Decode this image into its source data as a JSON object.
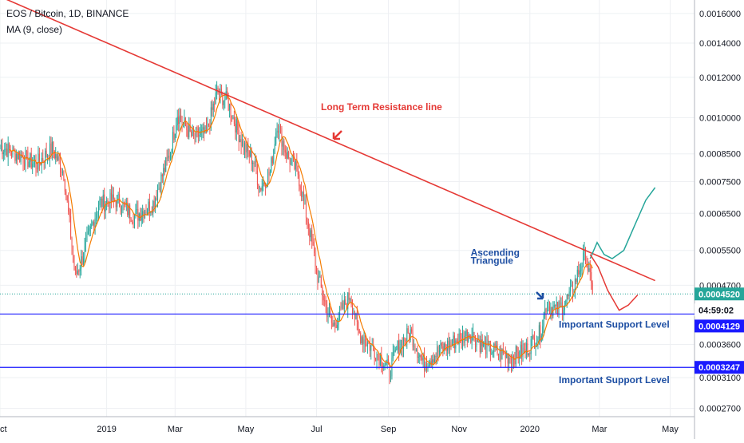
{
  "legend": {
    "title": "EOS / Bitcoin, 1D, BINANCE",
    "ma": "MA (9, close)"
  },
  "colors": {
    "up": "#26a69a",
    "down": "#ef5350",
    "ma": "#f57c00",
    "resistance": "#e53935",
    "support": "#1a1aff",
    "bullish": "#26a69a",
    "bearish": "#e53935",
    "annotation_red": "#e53935",
    "annotation_blue": "#1e4fa3",
    "price_tag": "#26a69a",
    "level_tag": "#1a1aff"
  },
  "chart_data": {
    "type": "candlestick",
    "title": "EOS / Bitcoin, 1D, BINANCE",
    "y_scale": "log",
    "ylim": [
      0.00026,
      0.0017
    ],
    "y_ticks": [
      "0.0016000",
      "0.0014000",
      "0.0012000",
      "0.0010000",
      "0.0008500",
      "0.0007500",
      "0.0006500",
      "0.0005500",
      "0.0004700",
      "0.0003600",
      "0.0003100",
      "0.0002700"
    ],
    "x_ticks": [
      "Oct",
      "2019",
      "Mar",
      "May",
      "Jul",
      "Sep",
      "Nov",
      "2020",
      "Mar",
      "May"
    ],
    "x_tick_positions": [
      "2018-10-01",
      "2019-01-01",
      "2019-03-01",
      "2019-05-01",
      "2019-07-01",
      "2019-09-01",
      "2019-11-01",
      "2020-01-01",
      "2020-03-01",
      "2020-05-01"
    ],
    "xlim": [
      "2018-10-01",
      "2020-05-22"
    ],
    "series": [
      {
        "name": "EOS / Bitcoin",
        "points": [
          [
            "2018-10-01",
            0.00088
          ],
          [
            "2018-10-15",
            0.00085
          ],
          [
            "2018-11-01",
            0.00081
          ],
          [
            "2018-11-15",
            0.00087
          ],
          [
            "2018-11-25",
            0.00078
          ],
          [
            "2018-12-05",
            0.00049
          ],
          [
            "2018-12-12",
            0.00054
          ],
          [
            "2018-12-25",
            0.00068
          ],
          [
            "2019-01-10",
            0.00069
          ],
          [
            "2019-01-25",
            0.00064
          ],
          [
            "2019-02-10",
            0.00068
          ],
          [
            "2019-02-25",
            0.00086
          ],
          [
            "2019-03-03",
            0.00102
          ],
          [
            "2019-03-15",
            0.00092
          ],
          [
            "2019-03-28",
            0.00093
          ],
          [
            "2019-04-06",
            0.00112
          ],
          [
            "2019-04-15",
            0.00108
          ],
          [
            "2019-04-28",
            0.00089
          ],
          [
            "2019-05-08",
            0.00082
          ],
          [
            "2019-05-13",
            0.00073
          ],
          [
            "2019-05-22",
            0.00078
          ],
          [
            "2019-05-28",
            0.00098
          ],
          [
            "2019-06-05",
            0.00085
          ],
          [
            "2019-06-15",
            0.00078
          ],
          [
            "2019-06-25",
            0.0006
          ],
          [
            "2019-07-02",
            0.00049
          ],
          [
            "2019-07-10",
            0.00042
          ],
          [
            "2019-07-15",
            0.00039
          ],
          [
            "2019-07-23",
            0.00042
          ],
          [
            "2019-07-30",
            0.00045
          ],
          [
            "2019-08-06",
            0.00038
          ],
          [
            "2019-08-15",
            0.00036
          ],
          [
            "2019-08-25",
            0.00034
          ],
          [
            "2019-09-02",
            0.00032
          ],
          [
            "2019-09-10",
            0.00036
          ],
          [
            "2019-09-20",
            0.00038
          ],
          [
            "2019-10-01",
            0.00033
          ],
          [
            "2019-10-15",
            0.00035
          ],
          [
            "2019-11-01",
            0.00037
          ],
          [
            "2019-11-10",
            0.00038
          ],
          [
            "2019-11-20",
            0.00036
          ],
          [
            "2019-12-01",
            0.00035
          ],
          [
            "2019-12-15",
            0.00034
          ],
          [
            "2019-12-28",
            0.00035
          ],
          [
            "2020-01-10",
            0.00038
          ],
          [
            "2020-01-15",
            0.00043
          ],
          [
            "2020-01-25",
            0.00042
          ],
          [
            "2020-02-05",
            0.00045
          ],
          [
            "2020-02-12",
            0.0005
          ],
          [
            "2020-02-18",
            0.00054
          ],
          [
            "2020-02-22",
            0.00048
          ],
          [
            "2020-02-24",
            0.000452
          ]
        ]
      },
      {
        "name": "MA (9, close)",
        "type": "line"
      }
    ],
    "last_price": "0.0004520",
    "countdown": "04:59:02",
    "levels": [
      {
        "value": 0.0004129,
        "label": "0.0004129",
        "text": "Important Support Level"
      },
      {
        "value": 0.0003247,
        "label": "0.0003247",
        "text": "Important Support Level"
      }
    ],
    "resistance_line": {
      "from": [
        "2018-09-25",
        0.00175
      ],
      "to": [
        "2020-04-18",
        0.00048
      ],
      "label": "Long Term Resistance line"
    },
    "projection_bullish": [
      [
        "2020-02-22",
        0.00053
      ],
      [
        "2020-02-28",
        0.00057
      ],
      [
        "2020-03-05",
        0.00054
      ],
      [
        "2020-03-12",
        0.00053
      ],
      [
        "2020-03-22",
        0.00055
      ],
      [
        "2020-04-01",
        0.00062
      ],
      [
        "2020-04-10",
        0.00069
      ],
      [
        "2020-04-18",
        0.00073
      ]
    ],
    "projection_bearish": [
      [
        "2020-02-22",
        0.00054
      ],
      [
        "2020-02-29",
        0.00051
      ],
      [
        "2020-03-08",
        0.00046
      ],
      [
        "2020-03-18",
        0.00042
      ],
      [
        "2020-03-26",
        0.00043
      ],
      [
        "2020-04-03",
        0.00045
      ]
    ],
    "annotations": [
      {
        "text": "Ascending",
        "date": "2020-01-05",
        "value": 0.000545
      },
      {
        "text": "Triangule",
        "date": "2020-01-05",
        "value": 0.000525
      }
    ],
    "grid": true
  }
}
